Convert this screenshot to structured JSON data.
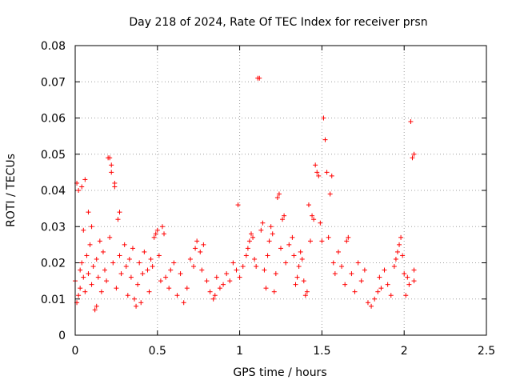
{
  "chart_data": {
    "type": "scatter",
    "title": "Day 218 of 2024, Rate Of TEC Index for receiver prsn",
    "xlabel": "GPS time / hours",
    "ylabel": "ROTI / TECUs",
    "xlim": [
      0,
      2.5
    ],
    "ylim": [
      0,
      0.08
    ],
    "xticks": [
      0,
      0.5,
      1,
      1.5,
      2,
      2.5
    ],
    "xtick_labels": [
      "0",
      "0.5",
      "1",
      "1.5",
      "2",
      "2.5"
    ],
    "yticks": [
      0,
      0.01,
      0.02,
      0.03,
      0.04,
      0.05,
      0.06,
      0.07,
      0.08
    ],
    "ytick_labels": [
      "0",
      "0.01",
      "0.02",
      "0.03",
      "0.04",
      "0.05",
      "0.06",
      "0.07",
      "0.08"
    ],
    "grid": true,
    "marker": "+",
    "color": "#ff0000",
    "points": [
      [
        0.0,
        0.015
      ],
      [
        0.01,
        0.009
      ],
      [
        0.01,
        0.042
      ],
      [
        0.02,
        0.011
      ],
      [
        0.02,
        0.04
      ],
      [
        0.03,
        0.018
      ],
      [
        0.03,
        0.013
      ],
      [
        0.04,
        0.041
      ],
      [
        0.04,
        0.02
      ],
      [
        0.05,
        0.016
      ],
      [
        0.05,
        0.029
      ],
      [
        0.06,
        0.043
      ],
      [
        0.06,
        0.012
      ],
      [
        0.07,
        0.022
      ],
      [
        0.08,
        0.034
      ],
      [
        0.08,
        0.017
      ],
      [
        0.09,
        0.025
      ],
      [
        0.1,
        0.03
      ],
      [
        0.1,
        0.014
      ],
      [
        0.11,
        0.019
      ],
      [
        0.12,
        0.007
      ],
      [
        0.13,
        0.008
      ],
      [
        0.13,
        0.021
      ],
      [
        0.14,
        0.016
      ],
      [
        0.15,
        0.026
      ],
      [
        0.16,
        0.012
      ],
      [
        0.17,
        0.023
      ],
      [
        0.18,
        0.018
      ],
      [
        0.19,
        0.015
      ],
      [
        0.2,
        0.049
      ],
      [
        0.21,
        0.049
      ],
      [
        0.21,
        0.027
      ],
      [
        0.22,
        0.047
      ],
      [
        0.22,
        0.045
      ],
      [
        0.23,
        0.02
      ],
      [
        0.24,
        0.042
      ],
      [
        0.24,
        0.041
      ],
      [
        0.25,
        0.013
      ],
      [
        0.26,
        0.032
      ],
      [
        0.27,
        0.034
      ],
      [
        0.27,
        0.022
      ],
      [
        0.28,
        0.017
      ],
      [
        0.3,
        0.025
      ],
      [
        0.31,
        0.019
      ],
      [
        0.32,
        0.011
      ],
      [
        0.33,
        0.021
      ],
      [
        0.34,
        0.016
      ],
      [
        0.35,
        0.024
      ],
      [
        0.36,
        0.01
      ],
      [
        0.37,
        0.008
      ],
      [
        0.38,
        0.014
      ],
      [
        0.39,
        0.02
      ],
      [
        0.4,
        0.009
      ],
      [
        0.41,
        0.017
      ],
      [
        0.42,
        0.023
      ],
      [
        0.44,
        0.018
      ],
      [
        0.45,
        0.012
      ],
      [
        0.46,
        0.021
      ],
      [
        0.47,
        0.019
      ],
      [
        0.48,
        0.027
      ],
      [
        0.49,
        0.028
      ],
      [
        0.5,
        0.029
      ],
      [
        0.51,
        0.022
      ],
      [
        0.52,
        0.015
      ],
      [
        0.53,
        0.03
      ],
      [
        0.54,
        0.028
      ],
      [
        0.55,
        0.016
      ],
      [
        0.57,
        0.013
      ],
      [
        0.58,
        0.018
      ],
      [
        0.6,
        0.02
      ],
      [
        0.62,
        0.011
      ],
      [
        0.64,
        0.017
      ],
      [
        0.66,
        0.009
      ],
      [
        0.68,
        0.013
      ],
      [
        0.7,
        0.021
      ],
      [
        0.72,
        0.019
      ],
      [
        0.73,
        0.024
      ],
      [
        0.74,
        0.026
      ],
      [
        0.76,
        0.023
      ],
      [
        0.77,
        0.018
      ],
      [
        0.78,
        0.025
      ],
      [
        0.8,
        0.015
      ],
      [
        0.82,
        0.012
      ],
      [
        0.84,
        0.01
      ],
      [
        0.85,
        0.011
      ],
      [
        0.86,
        0.016
      ],
      [
        0.88,
        0.013
      ],
      [
        0.9,
        0.014
      ],
      [
        0.92,
        0.017
      ],
      [
        0.94,
        0.015
      ],
      [
        0.96,
        0.02
      ],
      [
        0.98,
        0.018
      ],
      [
        0.99,
        0.036
      ],
      [
        1.0,
        0.016
      ],
      [
        1.02,
        0.019
      ],
      [
        1.04,
        0.022
      ],
      [
        1.05,
        0.024
      ],
      [
        1.06,
        0.026
      ],
      [
        1.07,
        0.028
      ],
      [
        1.08,
        0.027
      ],
      [
        1.09,
        0.021
      ],
      [
        1.1,
        0.019
      ],
      [
        1.11,
        0.071
      ],
      [
        1.12,
        0.071
      ],
      [
        1.13,
        0.029
      ],
      [
        1.14,
        0.031
      ],
      [
        1.15,
        0.018
      ],
      [
        1.16,
        0.013
      ],
      [
        1.17,
        0.022
      ],
      [
        1.18,
        0.026
      ],
      [
        1.19,
        0.03
      ],
      [
        1.2,
        0.028
      ],
      [
        1.21,
        0.012
      ],
      [
        1.22,
        0.017
      ],
      [
        1.23,
        0.038
      ],
      [
        1.24,
        0.039
      ],
      [
        1.25,
        0.024
      ],
      [
        1.26,
        0.032
      ],
      [
        1.27,
        0.033
      ],
      [
        1.28,
        0.02
      ],
      [
        1.3,
        0.025
      ],
      [
        1.32,
        0.027
      ],
      [
        1.33,
        0.022
      ],
      [
        1.34,
        0.014
      ],
      [
        1.35,
        0.016
      ],
      [
        1.36,
        0.019
      ],
      [
        1.37,
        0.023
      ],
      [
        1.38,
        0.021
      ],
      [
        1.39,
        0.015
      ],
      [
        1.4,
        0.011
      ],
      [
        1.41,
        0.012
      ],
      [
        1.42,
        0.036
      ],
      [
        1.43,
        0.026
      ],
      [
        1.44,
        0.033
      ],
      [
        1.45,
        0.032
      ],
      [
        1.46,
        0.047
      ],
      [
        1.47,
        0.045
      ],
      [
        1.48,
        0.044
      ],
      [
        1.49,
        0.031
      ],
      [
        1.5,
        0.026
      ],
      [
        1.51,
        0.06
      ],
      [
        1.52,
        0.054
      ],
      [
        1.53,
        0.045
      ],
      [
        1.54,
        0.027
      ],
      [
        1.55,
        0.039
      ],
      [
        1.56,
        0.044
      ],
      [
        1.57,
        0.02
      ],
      [
        1.58,
        0.017
      ],
      [
        1.6,
        0.023
      ],
      [
        1.62,
        0.019
      ],
      [
        1.64,
        0.014
      ],
      [
        1.65,
        0.026
      ],
      [
        1.66,
        0.027
      ],
      [
        1.68,
        0.017
      ],
      [
        1.7,
        0.012
      ],
      [
        1.72,
        0.02
      ],
      [
        1.74,
        0.015
      ],
      [
        1.76,
        0.018
      ],
      [
        1.78,
        0.009
      ],
      [
        1.8,
        0.008
      ],
      [
        1.82,
        0.01
      ],
      [
        1.84,
        0.012
      ],
      [
        1.85,
        0.016
      ],
      [
        1.86,
        0.013
      ],
      [
        1.88,
        0.018
      ],
      [
        1.9,
        0.014
      ],
      [
        1.92,
        0.011
      ],
      [
        1.94,
        0.019
      ],
      [
        1.95,
        0.021
      ],
      [
        1.96,
        0.023
      ],
      [
        1.97,
        0.025
      ],
      [
        1.98,
        0.027
      ],
      [
        1.99,
        0.022
      ],
      [
        2.0,
        0.017
      ],
      [
        2.01,
        0.011
      ],
      [
        2.02,
        0.016
      ],
      [
        2.03,
        0.014
      ],
      [
        2.04,
        0.059
      ],
      [
        2.05,
        0.049
      ],
      [
        2.06,
        0.05
      ],
      [
        2.06,
        0.018
      ],
      [
        2.06,
        0.015
      ]
    ]
  }
}
